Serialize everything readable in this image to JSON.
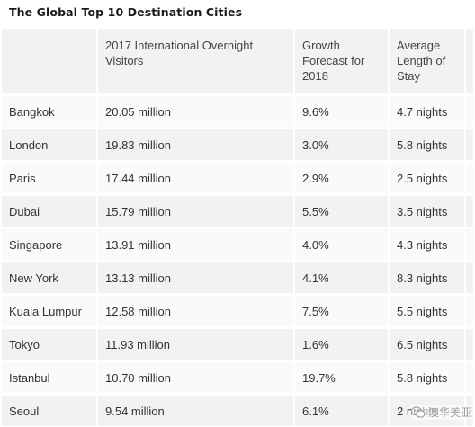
{
  "title": "The Global Top 10 Destination Cities",
  "table": {
    "headers": [
      "",
      "2017 International Overnight Visitors",
      "Growth Forecast for 2018",
      "Average Length of Stay"
    ],
    "rows": [
      {
        "city": "Bangkok",
        "visitors": "20.05 million",
        "growth": "9.6%",
        "stay": "4.7 nights"
      },
      {
        "city": "London",
        "visitors": "19.83 million",
        "growth": "3.0%",
        "stay": "5.8 nights"
      },
      {
        "city": "Paris",
        "visitors": "17.44 million",
        "growth": "2.9%",
        "stay": "2.5 nights"
      },
      {
        "city": "Dubai",
        "visitors": "15.79 million",
        "growth": "5.5%",
        "stay": "3.5 nights"
      },
      {
        "city": "Singapore",
        "visitors": "13.91 million",
        "growth": "4.0%",
        "stay": "4.3 nights"
      },
      {
        "city": "New York",
        "visitors": "13.13 million",
        "growth": "4.1%",
        "stay": "8.3 nights"
      },
      {
        "city": "Kuala Lumpur",
        "visitors": "12.58 million",
        "growth": "7.5%",
        "stay": "5.5 nights"
      },
      {
        "city": "Tokyo",
        "visitors": "11.93 million",
        "growth": "1.6%",
        "stay": "6.5 nights"
      },
      {
        "city": "Istanbul",
        "visitors": "10.70 million",
        "growth": "19.7%",
        "stay": "5.8 nights"
      },
      {
        "city": "Seoul",
        "visitors": "9.54 million",
        "growth": "6.1%",
        "stay": "2 nights"
      }
    ]
  },
  "watermark": {
    "text": "澳华美亚",
    "icon": "wechat-icon"
  }
}
